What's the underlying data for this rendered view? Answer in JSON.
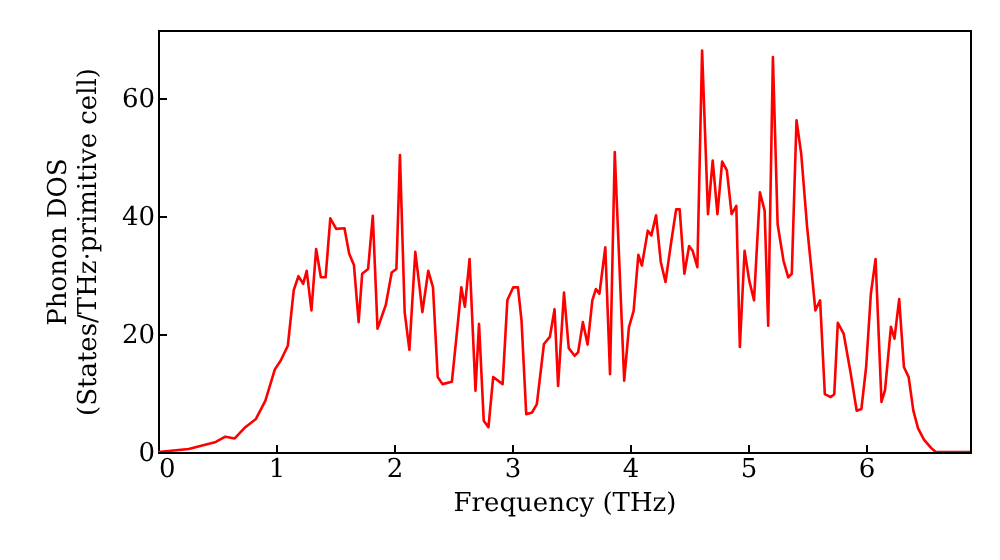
{
  "chart_data": {
    "type": "line",
    "xlabel": "Frequency (THz)",
    "ylabel": "Phonon DOS\n(States/THz·primitive cell)",
    "xlim": [
      0,
      6.88
    ],
    "ylim": [
      0,
      71.5
    ],
    "xticks": [
      0,
      1,
      2,
      3,
      4,
      5,
      6
    ],
    "yticks": [
      0,
      20,
      40,
      60
    ],
    "grid": false,
    "marker": "none",
    "line_style": "solid",
    "series": [
      {
        "color": "#ff0000",
        "x": [
          0.0,
          0.26,
          0.49,
          0.57,
          0.65,
          0.74,
          0.83,
          0.91,
          0.99,
          1.04,
          1.1,
          1.15,
          1.19,
          1.23,
          1.26,
          1.3,
          1.34,
          1.38,
          1.42,
          1.46,
          1.51,
          1.58,
          1.62,
          1.66,
          1.7,
          1.73,
          1.78,
          1.82,
          1.86,
          1.93,
          1.98,
          2.02,
          2.05,
          2.09,
          2.13,
          2.18,
          2.21,
          2.24,
          2.29,
          2.33,
          2.37,
          2.41,
          2.49,
          2.54,
          2.57,
          2.6,
          2.64,
          2.69,
          2.72,
          2.76,
          2.8,
          2.84,
          2.92,
          2.96,
          3.01,
          3.05,
          3.08,
          3.12,
          3.17,
          3.21,
          3.27,
          3.32,
          3.36,
          3.39,
          3.44,
          3.48,
          3.53,
          3.56,
          3.6,
          3.64,
          3.68,
          3.71,
          3.74,
          3.79,
          3.83,
          3.87,
          3.95,
          3.99,
          4.03,
          4.07,
          4.1,
          4.15,
          4.18,
          4.22,
          4.26,
          4.3,
          4.35,
          4.39,
          4.42,
          4.46,
          4.5,
          4.53,
          4.57,
          4.61,
          4.66,
          4.7,
          4.74,
          4.78,
          4.82,
          4.86,
          4.9,
          4.93,
          4.97,
          5.01,
          5.05,
          5.1,
          5.14,
          5.17,
          5.21,
          5.25,
          5.3,
          5.34,
          5.37,
          5.41,
          5.45,
          5.5,
          5.54,
          5.57,
          5.61,
          5.65,
          5.7,
          5.73,
          5.76,
          5.81,
          5.87,
          5.92,
          5.96,
          6.0,
          6.04,
          6.08,
          6.13,
          6.16,
          6.21,
          6.24,
          6.28,
          6.32,
          6.36,
          6.4,
          6.44,
          6.49,
          6.55,
          6.59,
          6.88
        ],
        "values": [
          0,
          0.5,
          1.7,
          2.6,
          2.3,
          4.2,
          5.6,
          8.7,
          14,
          15.5,
          18,
          27.4,
          29.8,
          28.5,
          30.7,
          24,
          34.4,
          29.6,
          29.6,
          39.6,
          37.8,
          37.9,
          33.6,
          31.7,
          22,
          30.2,
          31,
          40,
          20.9,
          24.9,
          30.4,
          31,
          50.3,
          23.7,
          17.3,
          33.9,
          29,
          23.7,
          30.7,
          27.9,
          12.7,
          11.5,
          11.9,
          21.7,
          27.9,
          24.6,
          32.7,
          10.4,
          21.7,
          5.3,
          4.2,
          12.7,
          11.5,
          25.7,
          27.9,
          27.9,
          22.3,
          6.4,
          6.7,
          8.1,
          18.3,
          19.5,
          24.2,
          11.2,
          27,
          17.6,
          16.3,
          16.9,
          22,
          18.2,
          25.7,
          27.6,
          26.8,
          34.7,
          13.2,
          50.8,
          12.1,
          21.1,
          23.9,
          33.4,
          31.6,
          37.5,
          36.7,
          40.1,
          32.2,
          28.8,
          35.8,
          41.1,
          41.1,
          30.2,
          34.9,
          34.1,
          31.3,
          68,
          40.3,
          49.4,
          40.3,
          49.2,
          47.7,
          40.3,
          41.7,
          17.8,
          34.1,
          29,
          25.7,
          44,
          40.9,
          21.4,
          66.9,
          38.6,
          32.4,
          29.6,
          30.2,
          56.2,
          50.5,
          38.1,
          30.2,
          24,
          25.7,
          9.8,
          9.3,
          9.8,
          21.9,
          20,
          13.2,
          7,
          7.3,
          14.4,
          26.8,
          32.7,
          8.5,
          10.5,
          21.2,
          19.2,
          25.9,
          14.4,
          12.7,
          7,
          4,
          2.1,
          0.7,
          0,
          0
        ]
      }
    ]
  }
}
